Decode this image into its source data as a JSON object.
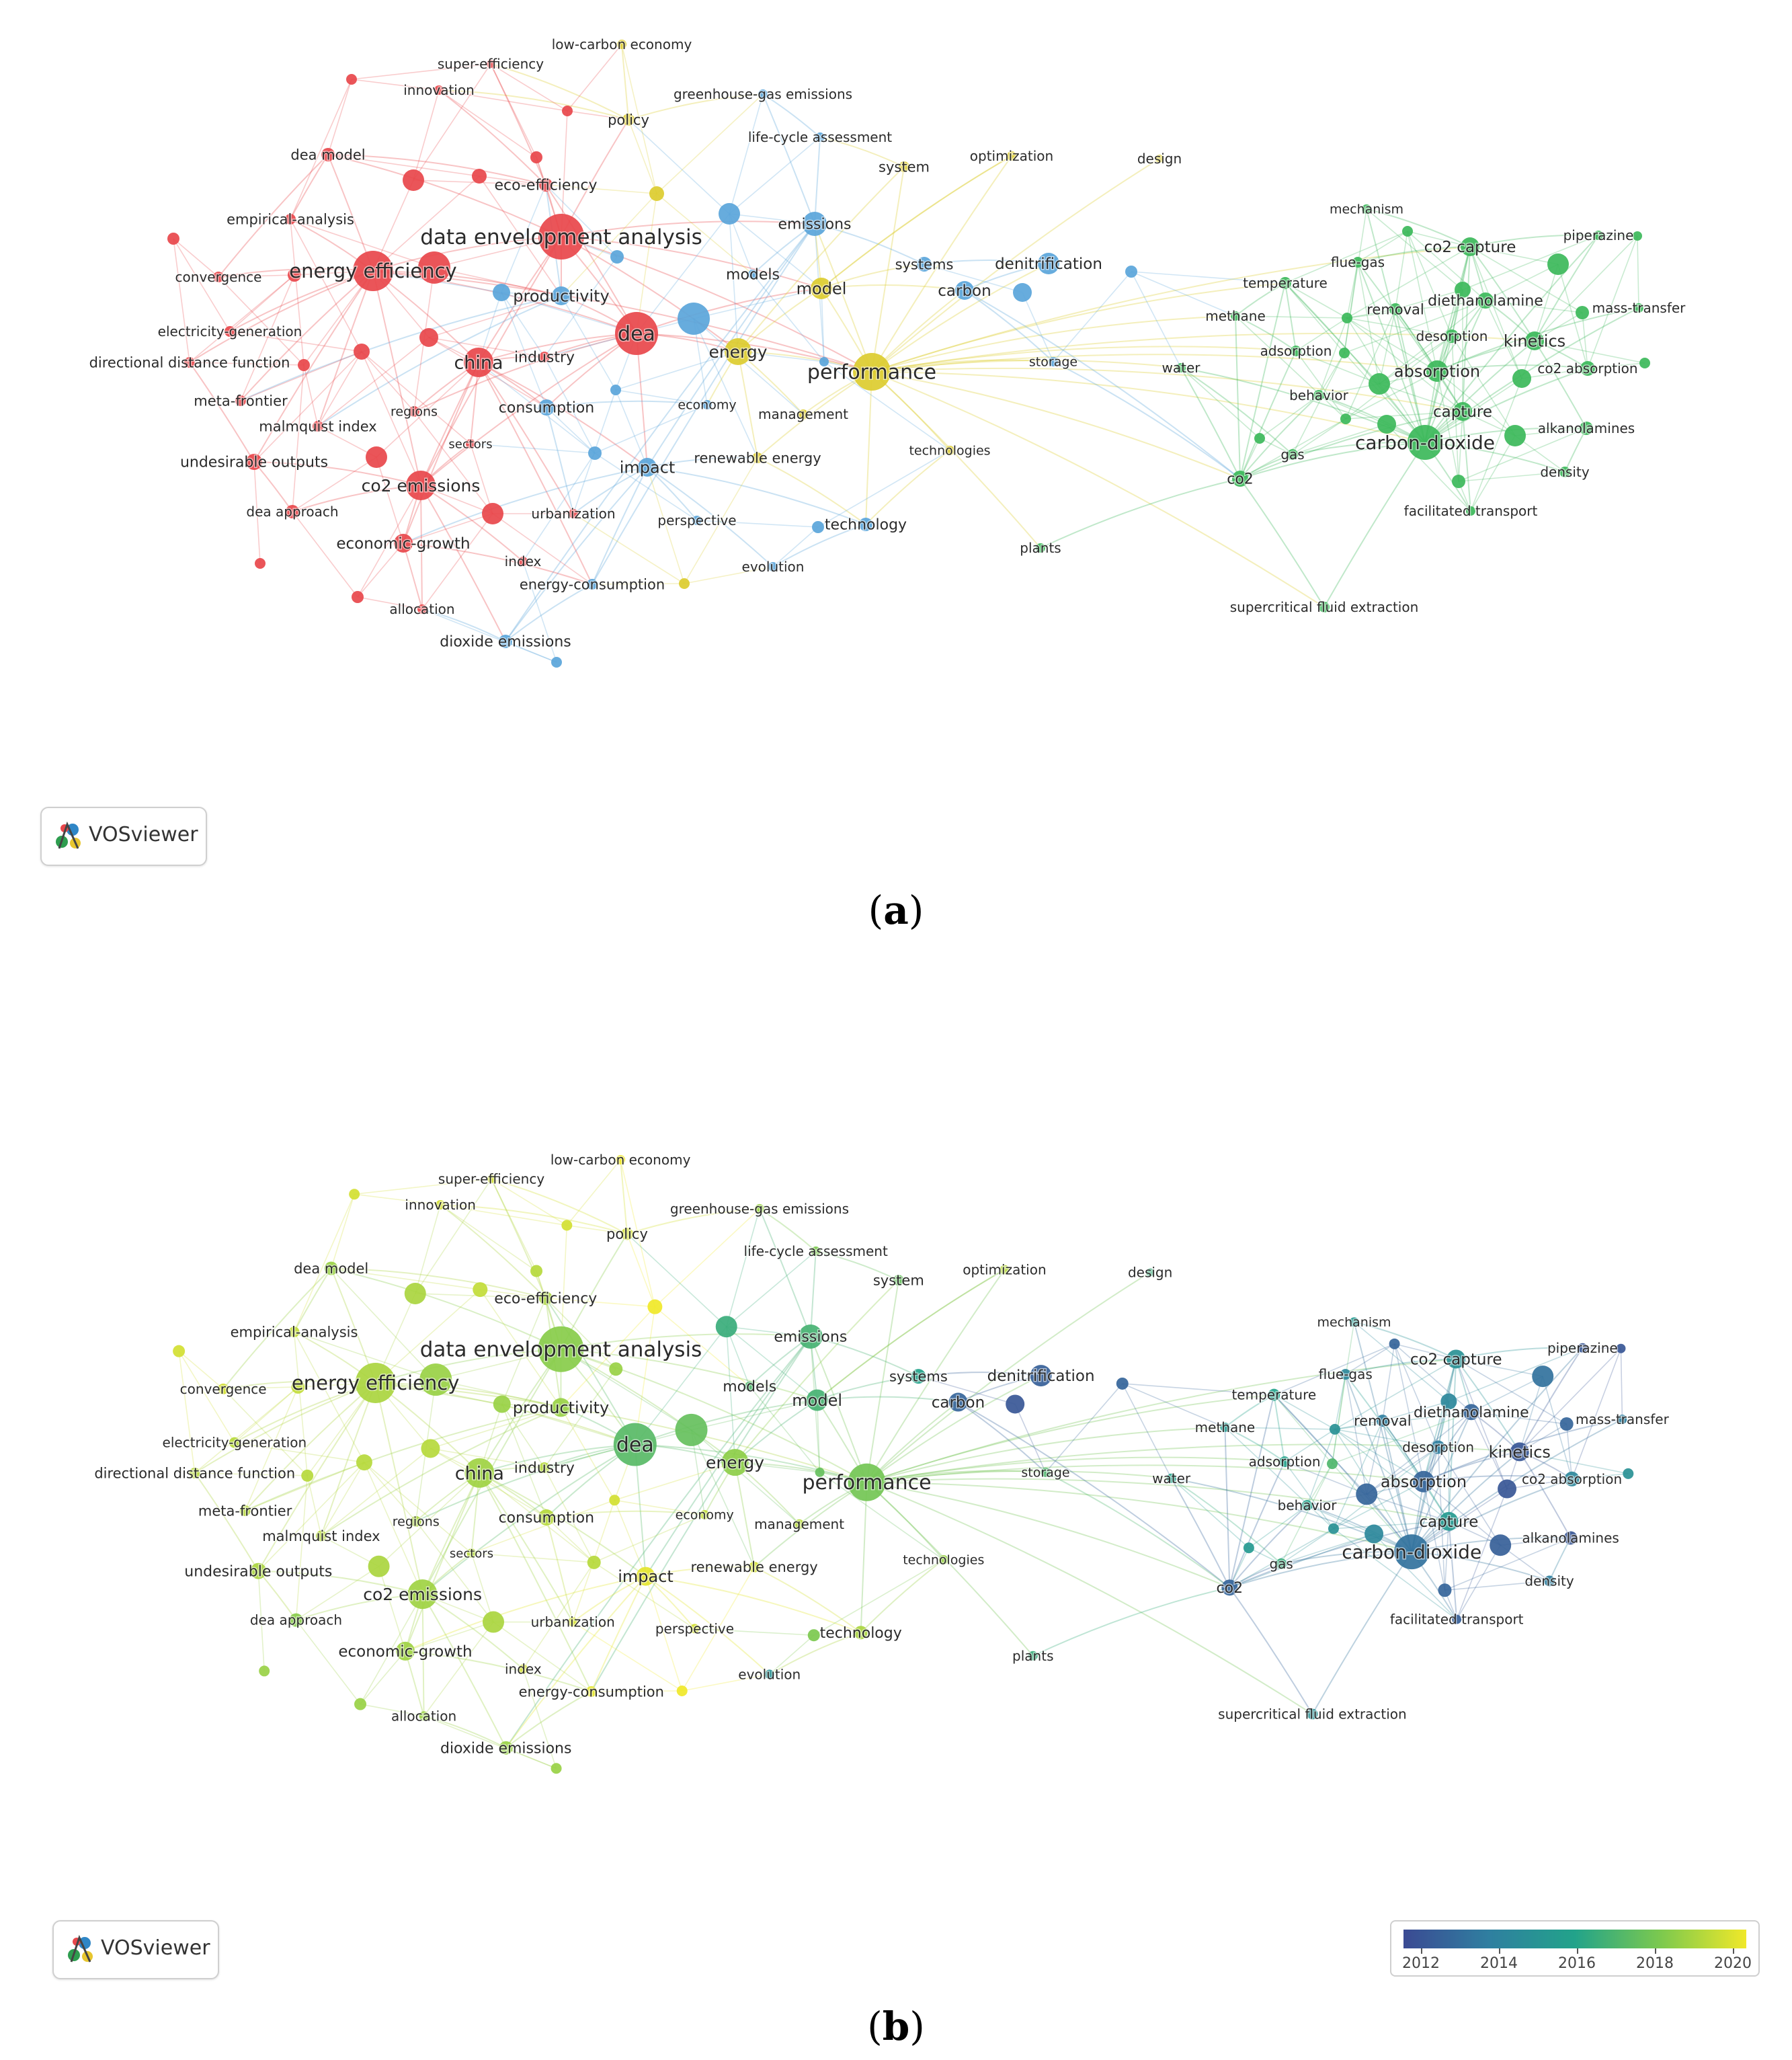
{
  "captions": {
    "a": "a",
    "b": "b"
  },
  "logo": {
    "text": "VOSviewer",
    "icon": "vosviewer-logo-icon"
  },
  "colorbar": {
    "years": [
      "2012",
      "2014",
      "2016",
      "2018",
      "2020"
    ],
    "colors": [
      "#3b4a93",
      "#2f7fa0",
      "#22a38a",
      "#7cc94e",
      "#f0e829"
    ]
  },
  "clusters": {
    "red": "#e8474b",
    "blue": "#5aa5da",
    "yellow": "#dccc2f",
    "green": "#3cb85a"
  },
  "nodes": [
    {
      "id": "low-carbon-economy",
      "label": "low-carbon economy",
      "cluster": "yellow",
      "year": 2020.0
    },
    {
      "id": "super-efficiency",
      "label": "super-efficiency",
      "cluster": "red",
      "year": 2019.5
    },
    {
      "id": "innovation",
      "label": "innovation",
      "cluster": "red",
      "year": 2019.5
    },
    {
      "id": "greenhouse-gas-emissions",
      "label": "greenhouse-gas emissions",
      "cluster": "blue",
      "year": 2018.5
    },
    {
      "id": "policy",
      "label": "policy",
      "cluster": "yellow",
      "year": 2019.5
    },
    {
      "id": "life-cycle-assessment",
      "label": "life-cycle assessment",
      "cluster": "blue",
      "year": 2018.0
    },
    {
      "id": "system",
      "label": "system",
      "cluster": "yellow",
      "year": 2017.5
    },
    {
      "id": "optimization",
      "label": "optimization",
      "cluster": "yellow",
      "year": 2019.0
    },
    {
      "id": "design",
      "label": "design",
      "cluster": "yellow",
      "year": 2016.5
    },
    {
      "id": "dea-model",
      "label": "dea model",
      "cluster": "red",
      "year": 2018.5
    },
    {
      "id": "eco-efficiency",
      "label": "eco-efficiency",
      "cluster": "red",
      "year": 2018.8
    },
    {
      "id": "empirical-analysis",
      "label": "empirical-analysis",
      "cluster": "red",
      "year": 2019.2
    },
    {
      "id": "data-envelopment-analysis",
      "label": "data envelopment analysis",
      "cluster": "red",
      "year": 2018.2
    },
    {
      "id": "emissions",
      "label": "emissions",
      "cluster": "blue",
      "year": 2016.8
    },
    {
      "id": "energy-efficiency",
      "label": "energy efficiency",
      "cluster": "red",
      "year": 2018.8
    },
    {
      "id": "convergence",
      "label": "convergence",
      "cluster": "red",
      "year": 2019.5
    },
    {
      "id": "models",
      "label": "models",
      "cluster": "blue",
      "year": 2017.0
    },
    {
      "id": "model",
      "label": "model",
      "cluster": "yellow",
      "year": 2016.8
    },
    {
      "id": "systems",
      "label": "systems",
      "cluster": "blue",
      "year": 2016.0
    },
    {
      "id": "denitrification",
      "label": "denitrification",
      "cluster": "blue",
      "year": 2012.8
    },
    {
      "id": "carbon",
      "label": "carbon",
      "cluster": "blue",
      "year": 2013.0
    },
    {
      "id": "productivity",
      "label": "productivity",
      "cluster": "blue",
      "year": 2018.5
    },
    {
      "id": "electricity-generation",
      "label": "electricity-generation",
      "cluster": "red",
      "year": 2019.0
    },
    {
      "id": "dea",
      "label": "dea",
      "cluster": "red",
      "year": 2017.2
    },
    {
      "id": "energy",
      "label": "energy",
      "cluster": "yellow",
      "year": 2018.3
    },
    {
      "id": "china",
      "label": "china",
      "cluster": "red",
      "year": 2018.6
    },
    {
      "id": "industry",
      "label": "industry",
      "cluster": "red",
      "year": 2019.0
    },
    {
      "id": "directional-distance-function",
      "label": "directional distance function",
      "cluster": "red",
      "year": 2019.0
    },
    {
      "id": "performance",
      "label": "performance",
      "cluster": "yellow",
      "year": 2017.8
    },
    {
      "id": "storage",
      "label": "storage",
      "cluster": "blue",
      "year": 2017.0
    },
    {
      "id": "meta-frontier",
      "label": "meta-frontier",
      "cluster": "red",
      "year": 2019.0
    },
    {
      "id": "regions",
      "label": "regions",
      "cluster": "red",
      "year": 2018.8
    },
    {
      "id": "consumption",
      "label": "consumption",
      "cluster": "blue",
      "year": 2019.0
    },
    {
      "id": "economy",
      "label": "economy",
      "cluster": "blue",
      "year": 2019.2
    },
    {
      "id": "management",
      "label": "management",
      "cluster": "yellow",
      "year": 2019.0
    },
    {
      "id": "malmquist-index",
      "label": "malmquist index",
      "cluster": "red",
      "year": 2019.0
    },
    {
      "id": "sectors",
      "label": "sectors",
      "cluster": "red",
      "year": 2019.0
    },
    {
      "id": "undesirable-outputs",
      "label": "undesirable outputs",
      "cluster": "red",
      "year": 2018.8
    },
    {
      "id": "impact",
      "label": "impact",
      "cluster": "blue",
      "year": 2019.8
    },
    {
      "id": "renewable-energy",
      "label": "renewable energy",
      "cluster": "yellow",
      "year": 2019.5
    },
    {
      "id": "technologies",
      "label": "technologies",
      "cluster": "yellow",
      "year": 2018.5
    },
    {
      "id": "co2-emissions",
      "label": "co2 emissions",
      "cluster": "red",
      "year": 2018.6
    },
    {
      "id": "dea-approach",
      "label": "dea approach",
      "cluster": "red",
      "year": 2018.2
    },
    {
      "id": "urbanization",
      "label": "urbanization",
      "cluster": "red",
      "year": 2019.5
    },
    {
      "id": "perspective",
      "label": "perspective",
      "cluster": "blue",
      "year": 2019.5
    },
    {
      "id": "technology",
      "label": "technology",
      "cluster": "blue",
      "year": 2018.8
    },
    {
      "id": "economic-growth",
      "label": "economic-growth",
      "cluster": "red",
      "year": 2018.6
    },
    {
      "id": "index",
      "label": "index",
      "cluster": "red",
      "year": 2019.5
    },
    {
      "id": "energy-consumption",
      "label": "energy-consumption",
      "cluster": "blue",
      "year": 2019.8
    },
    {
      "id": "evolution",
      "label": "evolution",
      "cluster": "blue",
      "year": 2015.0
    },
    {
      "id": "plants",
      "label": "plants",
      "cluster": "green",
      "year": 2016.5
    },
    {
      "id": "allocation",
      "label": "allocation",
      "cluster": "red",
      "year": 2018.5
    },
    {
      "id": "dioxide-emissions",
      "label": "dioxide emissions",
      "cluster": "blue",
      "year": 2018.5
    },
    {
      "id": "mechanism",
      "label": "mechanism",
      "cluster": "green",
      "year": 2015.5
    },
    {
      "id": "co2-capture",
      "label": "co2 capture",
      "cluster": "green",
      "year": 2015.0
    },
    {
      "id": "piperazine",
      "label": "piperazine",
      "cluster": "green",
      "year": 2012.5
    },
    {
      "id": "flue-gas",
      "label": "flue-gas",
      "cluster": "green",
      "year": 2014.5
    },
    {
      "id": "temperature",
      "label": "temperature",
      "cluster": "green",
      "year": 2016.0
    },
    {
      "id": "diethanolamine",
      "label": "diethanolamine",
      "cluster": "green",
      "year": 2013.0
    },
    {
      "id": "mass-transfer",
      "label": "mass-transfer",
      "cluster": "green",
      "year": 2014.0
    },
    {
      "id": "methane",
      "label": "methane",
      "cluster": "green",
      "year": 2015.5
    },
    {
      "id": "removal",
      "label": "removal",
      "cluster": "green",
      "year": 2014.0
    },
    {
      "id": "desorption",
      "label": "desorption",
      "cluster": "green",
      "year": 2014.0
    },
    {
      "id": "kinetics",
      "label": "kinetics",
      "cluster": "green",
      "year": 2012.5
    },
    {
      "id": "adsorption",
      "label": "adsorption",
      "cluster": "green",
      "year": 2016.0
    },
    {
      "id": "water",
      "label": "water",
      "cluster": "green",
      "year": 2016.0
    },
    {
      "id": "absorption",
      "label": "absorption",
      "cluster": "green",
      "year": 2013.0
    },
    {
      "id": "co2-absorption",
      "label": "co2 absorption",
      "cluster": "green",
      "year": 2014.5
    },
    {
      "id": "behavior",
      "label": "behavior",
      "cluster": "green",
      "year": 2016.0
    },
    {
      "id": "capture",
      "label": "capture",
      "cluster": "green",
      "year": 2015.5
    },
    {
      "id": "alkanolamines",
      "label": "alkanolamines",
      "cluster": "green",
      "year": 2012.5
    },
    {
      "id": "gas",
      "label": "gas",
      "cluster": "green",
      "year": 2016.5
    },
    {
      "id": "carbon-dioxide",
      "label": "carbon-dioxide",
      "cluster": "green",
      "year": 2013.5
    },
    {
      "id": "co2",
      "label": "co2",
      "cluster": "green",
      "year": 2013.0
    },
    {
      "id": "density",
      "label": "density",
      "cluster": "green",
      "year": 2014.0
    },
    {
      "id": "facilitated-transport",
      "label": "facilitated transport",
      "cluster": "green",
      "year": 2012.8
    },
    {
      "id": "supercritical-fluid-extraction",
      "label": "supercritical fluid extraction",
      "cluster": "green",
      "year": 2015.0
    }
  ]
}
